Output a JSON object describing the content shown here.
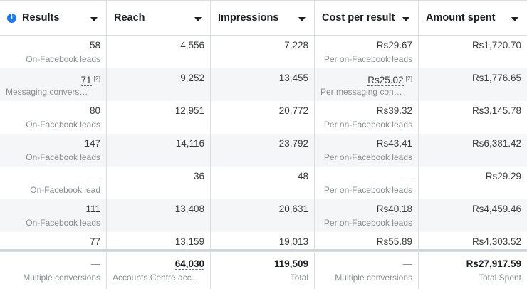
{
  "headers": [
    {
      "label": "Results",
      "info_icon": "i"
    },
    {
      "label": "Reach"
    },
    {
      "label": "Impressions"
    },
    {
      "label": "Cost per result"
    },
    {
      "label": "Amount spent"
    }
  ],
  "rows": [
    {
      "results": "58",
      "results_sub": "On-Facebook leads",
      "reach": "4,556",
      "impressions": "7,228",
      "cost": "Rs29.67",
      "cost_sub": "Per on-Facebook leads",
      "spent": "Rs1,720.70"
    },
    {
      "results": "71",
      "results_note": "[2]",
      "results_sub": "Messaging convers…",
      "reach": "9,252",
      "impressions": "13,455",
      "cost": "Rs25.02",
      "cost_note": "[2]",
      "cost_sub": "Per messaging con…",
      "spent": "Rs1,776.65"
    },
    {
      "results": "80",
      "results_sub": "On-Facebook leads",
      "reach": "12,951",
      "impressions": "20,772",
      "cost": "Rs39.32",
      "cost_sub": "Per on-Facebook leads",
      "spent": "Rs3,145.78"
    },
    {
      "results": "147",
      "results_sub": "On-Facebook leads",
      "reach": "14,116",
      "impressions": "23,792",
      "cost": "Rs43.41",
      "cost_sub": "Per on-Facebook leads",
      "spent": "Rs6,381.42"
    },
    {
      "results": "—",
      "results_sub": "On-Facebook lead",
      "reach": "36",
      "impressions": "48",
      "cost": "—",
      "cost_sub": "Per on-Facebook leads",
      "spent": "Rs29.29"
    },
    {
      "results": "111",
      "results_sub": "On-Facebook leads",
      "reach": "13,408",
      "impressions": "20,631",
      "cost": "Rs40.18",
      "cost_sub": "Per on-Facebook leads",
      "spent": "Rs4,459.46"
    },
    {
      "results": "77",
      "results_sub": "",
      "reach": "13,159",
      "impressions": "19,013",
      "cost": "Rs55.89",
      "cost_sub": "",
      "spent": "Rs4,303.52"
    }
  ],
  "total": {
    "results": "—",
    "results_sub": "Multiple conversions",
    "reach": "64,030",
    "reach_sub": "Accounts Centre acco…",
    "impressions": "119,509",
    "impressions_sub": "Total",
    "cost": "—",
    "cost_sub": "Multiple conversions",
    "spent": "Rs27,917.59",
    "spent_sub": "Total Spent"
  }
}
